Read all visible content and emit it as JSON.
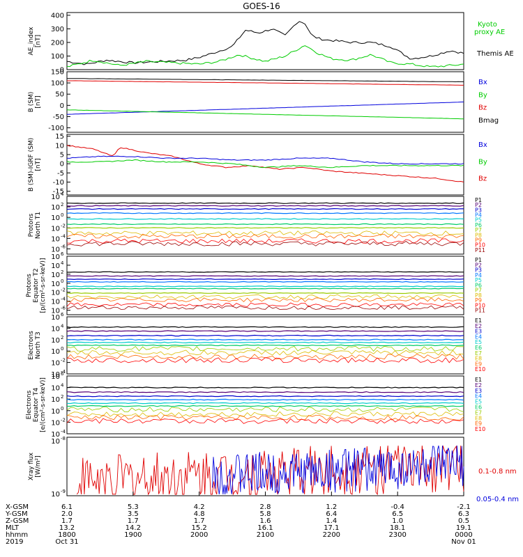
{
  "title": "GOES-16",
  "colors": {
    "black": "#000000",
    "red": "#e00000",
    "green": "#00cc00",
    "blue": "#0000dd",
    "P": [
      "#000000",
      "#550077",
      "#0000cc",
      "#0077ff",
      "#00cccc",
      "#00cc66",
      "#99cc00",
      "#ddbb00",
      "#ff6600",
      "#ff0000",
      "#990000"
    ],
    "E": [
      "#000000",
      "#550077",
      "#0000cc",
      "#0077ff",
      "#00cccc",
      "#00cc66",
      "#99cc00",
      "#ddbb00",
      "#ff6600",
      "#ff0000",
      "#990000"
    ]
  },
  "xaxis": {
    "columns": [
      {
        "xgsm": "6.1",
        "ygsm": "2.0",
        "zgsm": "1.7",
        "mlt": "13.2",
        "hhmm": "1800",
        "date": "Oct 31"
      },
      {
        "xgsm": "5.3",
        "ygsm": "3.5",
        "zgsm": "1.7",
        "mlt": "14.2",
        "hhmm": "1900",
        "date": ""
      },
      {
        "xgsm": "4.2",
        "ygsm": "4.8",
        "zgsm": "1.7",
        "mlt": "15.2",
        "hhmm": "2000",
        "date": ""
      },
      {
        "xgsm": "2.8",
        "ygsm": "5.8",
        "zgsm": "1.6",
        "mlt": "16.1",
        "hhmm": "2100",
        "date": ""
      },
      {
        "xgsm": "1.2",
        "ygsm": "6.4",
        "zgsm": "1.4",
        "mlt": "17.1",
        "hhmm": "2200",
        "date": ""
      },
      {
        "xgsm": "-0.4",
        "ygsm": "6.5",
        "zgsm": "1.0",
        "mlt": "18.1",
        "hhmm": "2300",
        "date": ""
      },
      {
        "xgsm": "-2.1",
        "ygsm": "6.3",
        "zgsm": "0.5",
        "mlt": "19.1",
        "hhmm": "0000",
        "date": "Nov 01"
      }
    ],
    "rowlabels": [
      "X-GSM",
      "Y-GSM",
      "Z-GSM",
      "MLT",
      "hhmm",
      "2019"
    ]
  },
  "chart_data": [
    {
      "type": "line",
      "ylabel": [
        "AE_index",
        "[nT]"
      ],
      "ylim": [
        0,
        420
      ],
      "yticks": [
        "400",
        "300",
        "200",
        "100",
        "0"
      ],
      "legend": [
        {
          "name": "Kyoto proxy AE",
          "color": "green"
        },
        {
          "name": "Themis AE",
          "color": "black"
        }
      ],
      "series": [
        {
          "name": "Themis AE",
          "color": "black",
          "x_hours": [
            0,
            0.3,
            0.6,
            1.0,
            1.4,
            1.8,
            2.0,
            2.2,
            2.5,
            2.7,
            2.9,
            3.1,
            3.3,
            3.5,
            3.6,
            3.7,
            3.8,
            3.9,
            4.1,
            4.3,
            4.6,
            4.9,
            5.2,
            5.5,
            5.8,
            6.0
          ],
          "values": [
            60,
            40,
            70,
            50,
            60,
            70,
            90,
            120,
            170,
            290,
            270,
            300,
            250,
            360,
            340,
            250,
            230,
            220,
            210,
            200,
            200,
            170,
            80,
            100,
            140,
            120
          ]
        },
        {
          "name": "Kyoto proxy AE",
          "color": "green",
          "x_hours": [
            0,
            0.4,
            0.8,
            1.2,
            1.6,
            2.0,
            2.3,
            2.6,
            3.0,
            3.3,
            3.6,
            3.8,
            4.0,
            4.3,
            4.6,
            4.9,
            5.2,
            5.5,
            5.8,
            6.0
          ],
          "values": [
            20,
            70,
            30,
            60,
            50,
            40,
            60,
            110,
            60,
            100,
            180,
            120,
            80,
            70,
            110,
            50,
            40,
            20,
            30,
            40
          ]
        }
      ]
    },
    {
      "type": "line",
      "ylabel": [
        "B (SM)",
        "[nT]"
      ],
      "ylim": [
        -120,
        150
      ],
      "yticks": [
        "150",
        "100",
        "50",
        "0",
        "-50",
        "-100"
      ],
      "legend": [
        {
          "name": "Bx",
          "color": "blue"
        },
        {
          "name": "By",
          "color": "green"
        },
        {
          "name": "Bz",
          "color": "red"
        },
        {
          "name": "Bmag",
          "color": "black"
        }
      ],
      "series": [
        {
          "name": "Bmag",
          "color": "black",
          "x_hours": [
            0,
            6
          ],
          "values": [
            120,
            105
          ]
        },
        {
          "name": "Bz",
          "color": "red",
          "x_hours": [
            0,
            6
          ],
          "values": [
            110,
            90
          ]
        },
        {
          "name": "Bx",
          "color": "blue",
          "x_hours": [
            0,
            6
          ],
          "values": [
            -40,
            15
          ]
        },
        {
          "name": "By",
          "color": "green",
          "x_hours": [
            0,
            6
          ],
          "values": [
            -20,
            -60
          ]
        }
      ]
    },
    {
      "type": "line",
      "ylabel": [
        "B (SM)-IGRF (SM)",
        "[nT]"
      ],
      "ylim": [
        -17,
        16
      ],
      "yticks": [
        "15",
        "10",
        "5",
        "0",
        "-5",
        "-10",
        "-15"
      ],
      "legend": [
        {
          "name": "Bx",
          "color": "blue"
        },
        {
          "name": "By",
          "color": "green"
        },
        {
          "name": "Bz",
          "color": "red"
        }
      ],
      "series": [
        {
          "name": "Bz",
          "color": "red",
          "x_hours": [
            0,
            0.4,
            0.7,
            0.8,
            1.2,
            1.6,
            2.0,
            2.4,
            2.8,
            3.2,
            3.6,
            4.0,
            4.4,
            4.8,
            5.2,
            5.6,
            6.0
          ],
          "values": [
            10,
            8,
            4,
            9,
            6,
            4,
            0,
            -2,
            -1,
            -3,
            -2,
            -4,
            -5,
            -6,
            -7,
            -8,
            -10
          ]
        },
        {
          "name": "Bx",
          "color": "blue",
          "x_hours": [
            0,
            0.5,
            1.0,
            1.5,
            2.0,
            2.5,
            3.0,
            3.5,
            4.0,
            4.5,
            5.0,
            5.5,
            6.0
          ],
          "values": [
            3,
            4,
            4,
            3,
            3,
            2,
            2,
            3,
            3,
            1,
            0,
            0,
            0
          ]
        },
        {
          "name": "By",
          "color": "green",
          "x_hours": [
            0,
            0.5,
            1.0,
            1.5,
            2.0,
            2.5,
            3.0,
            3.5,
            4.0,
            4.5,
            5.0,
            5.5,
            6.0
          ],
          "values": [
            1,
            1,
            2,
            1,
            1,
            0,
            -2,
            -1,
            -2,
            -1,
            -1,
            -1,
            -1
          ]
        }
      ]
    },
    {
      "type": "line",
      "log": true,
      "ylabel": [
        "Protons",
        "North T1"
      ],
      "ylog_range": [
        -7,
        4
      ],
      "yticks": [
        "4",
        "2",
        "0",
        "-2",
        "-4",
        "-6"
      ],
      "legend": [
        "P1",
        "P2",
        "P3",
        "P4",
        "P5",
        "P6",
        "P7",
        "P8",
        "P9",
        "P10",
        "P11"
      ],
      "levels_log10": [
        2.7,
        2.2,
        1.6,
        0.8,
        -0.3,
        -1.3,
        -2.0,
        -3.0,
        -3.6,
        -4.5,
        -5.0
      ]
    },
    {
      "type": "line",
      "log": true,
      "ylabel": [
        "Protons",
        "Equator T2",
        "[p/(cm²-s-sr-keV)]"
      ],
      "ylog_range": [
        -7,
        6
      ],
      "yticks": [
        "6",
        "4",
        "2",
        "0",
        "-2",
        "-4",
        "-6"
      ],
      "legend": [
        "P1",
        "P2",
        "P3",
        "P4",
        "P5",
        "P6",
        "P7",
        "P8",
        "P9",
        "P10",
        "P11"
      ],
      "levels_log10": [
        2.5,
        1.6,
        0.9,
        0.3,
        -0.7,
        -1.2,
        -2.2,
        -3.0,
        -3.7,
        -4.8,
        -5.4
      ]
    },
    {
      "type": "line",
      "log": true,
      "ylabel": [
        "Electrons",
        "North T3"
      ],
      "ylog_range": [
        -4,
        6
      ],
      "yticks": [
        "6",
        "4",
        "2",
        "0",
        "-2",
        "-4"
      ],
      "legend": [
        "E1",
        "E2",
        "E3",
        "E4",
        "E5",
        "E6",
        "E7",
        "E8",
        "E9",
        "E10"
      ],
      "levels_log10": [
        4.2,
        3.5,
        2.7,
        2.0,
        1.5,
        1.0,
        0.4,
        -0.3,
        -1.0,
        -1.6
      ]
    },
    {
      "type": "line",
      "log": true,
      "ylabel": [
        "Electrons",
        "Equator T4",
        "[e/(cm²-s-sr-keV)]"
      ],
      "ylog_range": [
        -4,
        6
      ],
      "yticks": [
        "6",
        "4",
        "2",
        "0",
        "-2",
        "-4"
      ],
      "legend": [
        "E1",
        "E2",
        "E3",
        "E4",
        "E5",
        "E6",
        "E7",
        "E8",
        "E9",
        "E10"
      ],
      "levels_log10": [
        4.0,
        3.2,
        2.5,
        1.9,
        1.3,
        0.8,
        0.2,
        -0.6,
        -1.2,
        -1.8
      ]
    },
    {
      "type": "line",
      "log": true,
      "ylabel": [
        "Xray flux",
        "[W/m²]"
      ],
      "ylog_range": [
        -9,
        -8
      ],
      "yticks": [
        "-8",
        "-9"
      ],
      "legend": [
        {
          "name": "0.1-0.8 nm",
          "color": "red"
        },
        {
          "name": "0.05-0.4 nm",
          "color": "blue"
        }
      ]
    }
  ]
}
